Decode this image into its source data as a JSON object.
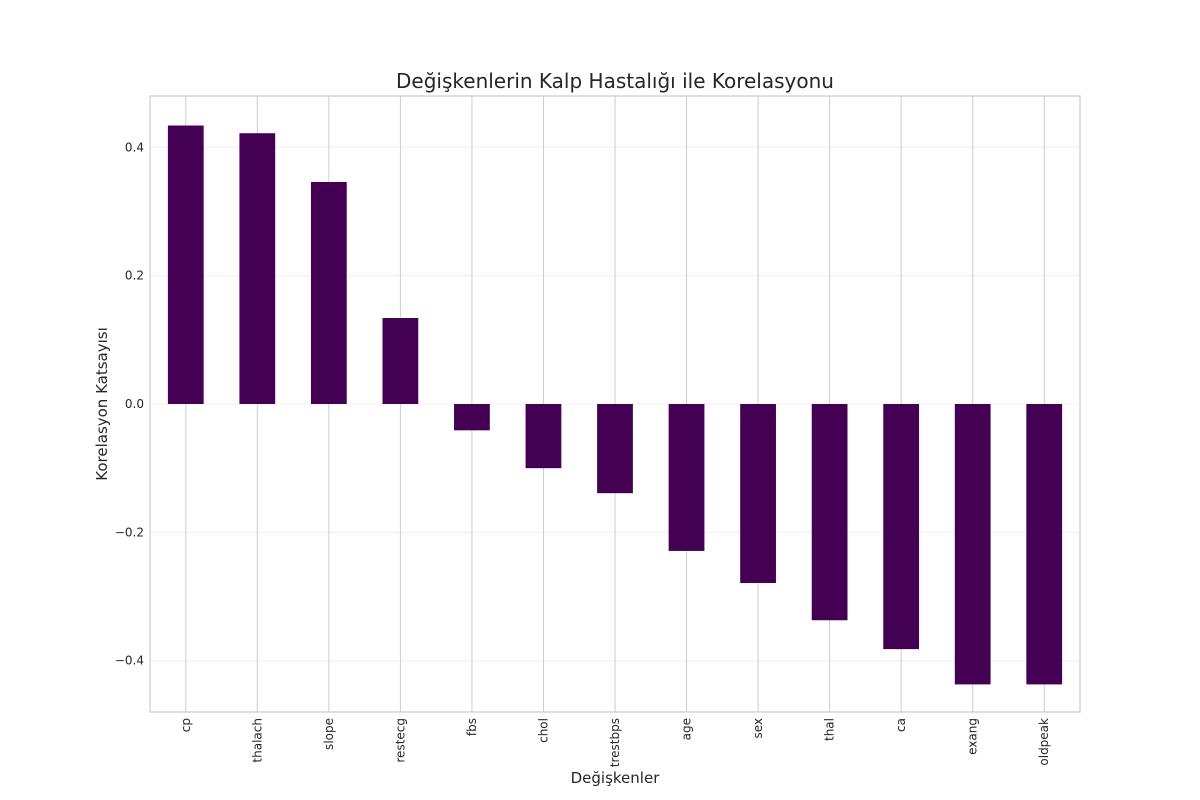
{
  "chart_data": {
    "type": "bar",
    "title": "Değişkenlerin Kalp Hastalığı ile Korelasyonu",
    "xlabel": "Değişkenler",
    "ylabel": "Korelasyon Katsayısı",
    "categories": [
      "cp",
      "thalach",
      "slope",
      "restecg",
      "fbs",
      "chol",
      "trestbps",
      "age",
      "sex",
      "thal",
      "ca",
      "exang",
      "oldpeak"
    ],
    "values": [
      0.434,
      0.422,
      0.346,
      0.134,
      -0.041,
      -0.1,
      -0.139,
      -0.229,
      -0.279,
      -0.337,
      -0.382,
      -0.437,
      -0.437
    ],
    "ylim": [
      -0.48,
      0.48
    ],
    "yticks": [
      -0.4,
      -0.2,
      0.0,
      0.2,
      0.4
    ],
    "ytick_labels": [
      "−0.4",
      "−0.2",
      "0.0",
      "0.2",
      "0.4"
    ],
    "bar_color": "#440154",
    "grid": true,
    "legend": "none"
  }
}
